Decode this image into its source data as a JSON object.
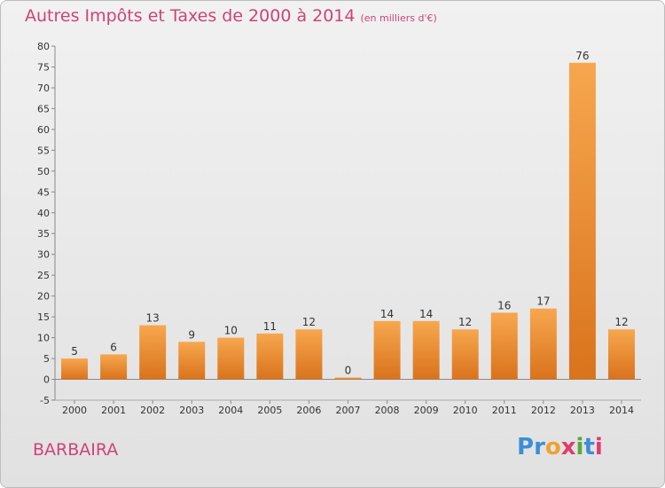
{
  "title": "Autres Impôts et Taxes de 2000 à 2014",
  "title_unit": "(en milliers d'€)",
  "region": "BARBAIRA",
  "logo": {
    "letters": [
      "P",
      "r",
      "o",
      "x",
      "i",
      "t",
      "i"
    ],
    "colors": [
      "#3b8fd6",
      "#3b8fd6",
      "#f0a030",
      "#e03c6e",
      "#5aa83c",
      "#3b8fd6",
      "#e03c6e"
    ]
  },
  "colors": {
    "bar_top": "#f7a74f",
    "bar_bottom": "#d9731c",
    "title": "#cc4477"
  },
  "chart_data": {
    "type": "bar",
    "categories": [
      "2000",
      "2001",
      "2002",
      "2003",
      "2004",
      "2005",
      "2006",
      "2007",
      "2008",
      "2009",
      "2010",
      "2011",
      "2012",
      "2013",
      "2014"
    ],
    "values": [
      5,
      6,
      13,
      9,
      10,
      11,
      12,
      0,
      14,
      14,
      12,
      16,
      17,
      76,
      12
    ],
    "ylim": [
      -5,
      80
    ],
    "yticks": [
      -5,
      0,
      5,
      10,
      15,
      20,
      25,
      30,
      35,
      40,
      45,
      50,
      55,
      60,
      65,
      70,
      75,
      80
    ],
    "grid": false
  }
}
